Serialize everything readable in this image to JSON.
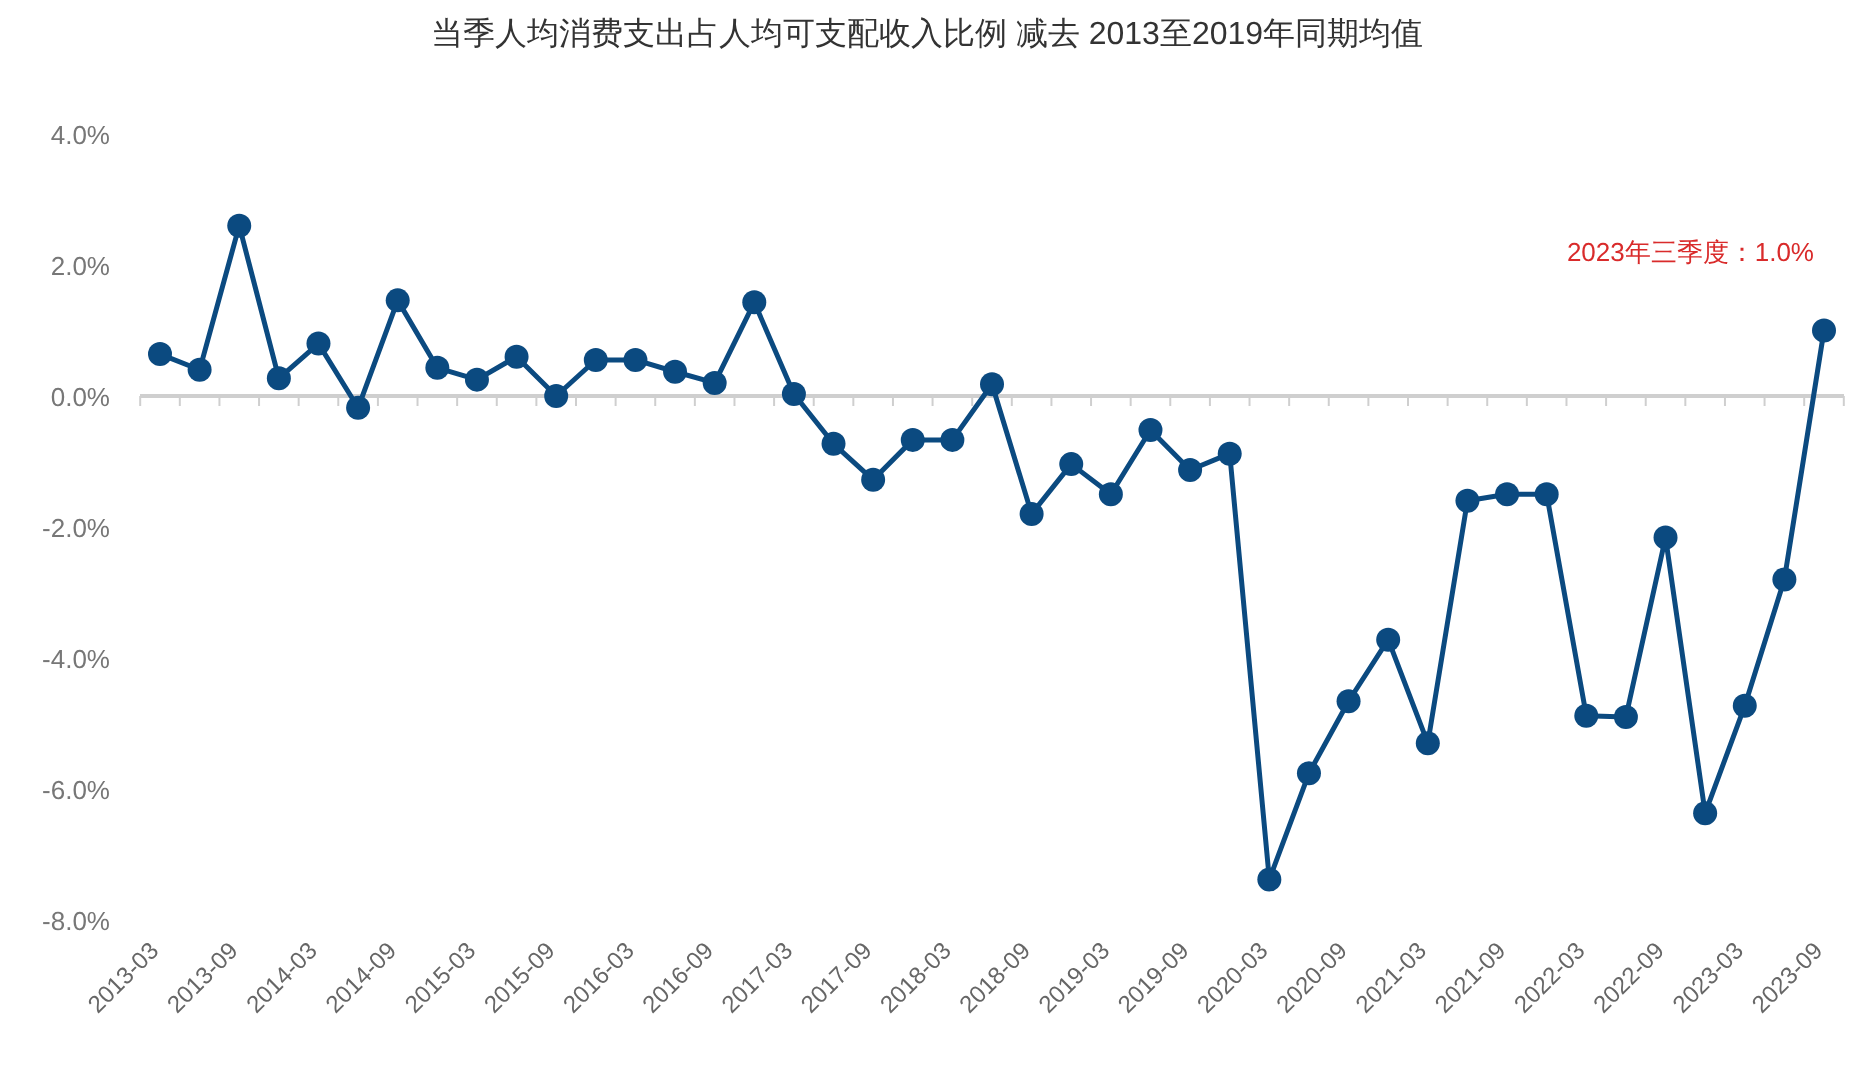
{
  "chart_data": {
    "type": "line",
    "title": "当季人均消费支出占人均可支配收入比例 减去 2013至2019年同期均值",
    "categories": [
      "2013-03",
      null,
      "2013-09",
      null,
      "2014-03",
      null,
      "2014-09",
      null,
      "2015-03",
      null,
      "2015-09",
      null,
      "2016-03",
      null,
      "2016-09",
      null,
      "2017-03",
      null,
      "2017-09",
      null,
      "2018-03",
      null,
      "2018-09",
      null,
      "2019-03",
      null,
      "2019-09",
      null,
      "2020-03",
      null,
      "2020-09",
      null,
      "2021-03",
      null,
      "2021-09",
      null,
      "2022-03",
      null,
      "2022-09",
      null,
      "2023-03",
      null,
      "2023-09"
    ],
    "series": [
      {
        "color": "#0b4a80",
        "values": [
          0.64,
          0.4,
          2.6,
          0.27,
          0.8,
          -0.18,
          1.46,
          0.43,
          0.25,
          0.6,
          0.0,
          0.55,
          0.55,
          0.37,
          0.2,
          1.43,
          0.03,
          -0.73,
          -1.28,
          -0.67,
          -0.67,
          0.18,
          -1.8,
          -1.04,
          -1.5,
          -0.52,
          -1.13,
          -0.88,
          -7.38,
          -5.76,
          -4.66,
          -3.72,
          -5.3,
          -1.6,
          -1.5,
          -1.5,
          -4.88,
          -4.9,
          -2.16,
          -6.37,
          -4.73,
          -2.8,
          1.0
        ]
      }
    ],
    "ylim": [
      -8,
      4
    ],
    "yticks": [
      {
        "value": -8,
        "label": "-8.0%"
      },
      {
        "value": -6,
        "label": "-6.0%"
      },
      {
        "value": -4,
        "label": "-4.0%"
      },
      {
        "value": -2,
        "label": "-2.0%"
      },
      {
        "value": 0,
        "label": "0.0%"
      },
      {
        "value": 2,
        "label": "2.0%"
      },
      {
        "value": 4,
        "label": "4.0%"
      }
    ],
    "annotations": [
      {
        "text": "2023年三季度：1.0%",
        "x": "2023-09",
        "y": 1.0
      }
    ],
    "marker": "circle",
    "line_style": "solid"
  }
}
